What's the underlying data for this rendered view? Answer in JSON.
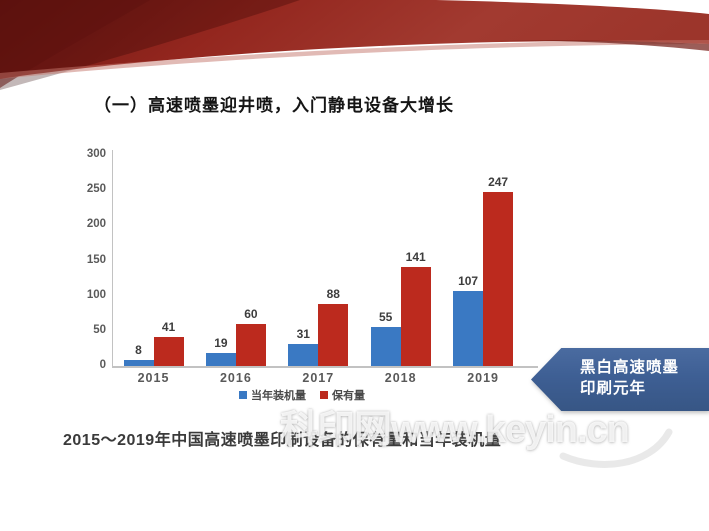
{
  "slide": {
    "title": "（一）高速喷墨迎井喷，入门静电设备大增长",
    "caption": "2015～2019年中国高速喷墨印刷设备的保有量和当年装机量",
    "banner": {
      "line1": "黑白高速喷墨",
      "line2": "印刷元年",
      "color": "#3E5F94"
    },
    "watermark": "科印网www.keyin.cn",
    "ribbon_color": "#93261E"
  },
  "chart_data": {
    "type": "bar",
    "title": "",
    "xlabel": "",
    "ylabel": "",
    "categories": [
      "2015",
      "2016",
      "2017",
      "2018",
      "2019"
    ],
    "series": [
      {
        "name": "当年装机量",
        "color": "#3A79C3",
        "values": [
          8,
          19,
          31,
          55,
          107
        ]
      },
      {
        "name": "保有量",
        "color": "#BC2A1E",
        "values": [
          41,
          60,
          88,
          141,
          247
        ]
      }
    ],
    "ylim": [
      0,
      300
    ],
    "yticks": [
      0,
      50,
      100,
      150,
      200,
      250,
      300
    ],
    "grid": false,
    "legend_position": "bottom"
  }
}
